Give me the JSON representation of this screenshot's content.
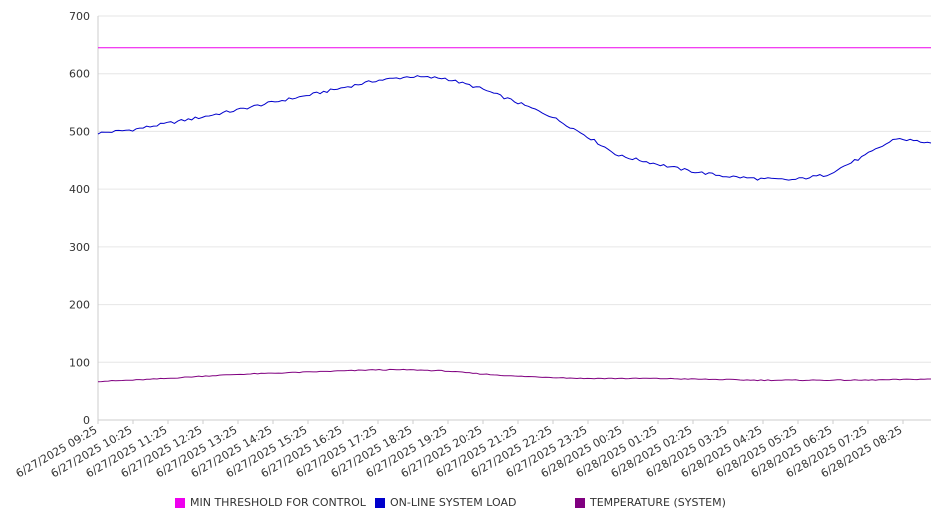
{
  "chart_data": {
    "type": "line",
    "title": "",
    "xlabel": "",
    "ylabel": "",
    "ylim": [
      0,
      700
    ],
    "y_ticks": [
      "0",
      "100",
      "200",
      "300",
      "400",
      "500",
      "600",
      "700"
    ],
    "grid": "horizontal",
    "legend_position": "bottom",
    "x_ticks": [
      "6/27/2025 09:25",
      "6/27/2025 10:25",
      "6/27/2025 11:25",
      "6/27/2025 12:25",
      "6/27/2025 13:25",
      "6/27/2025 14:25",
      "6/27/2025 15:25",
      "6/27/2025 16:25",
      "6/27/2025 17:25",
      "6/27/2025 18:25",
      "6/27/2025 19:25",
      "6/27/2025 20:25",
      "6/27/2025 21:25",
      "6/27/2025 22:25",
      "6/27/2025 23:25",
      "6/28/2025 00:25",
      "6/28/2025 01:25",
      "6/28/2025 02:25",
      "6/28/2025 03:25",
      "6/28/2025 04:25",
      "6/28/2025 05:25",
      "6/28/2025 06:25",
      "6/28/2025 07:25",
      "6/28/2025 08:25"
    ],
    "series": [
      {
        "name": "MIN THRESHOLD FOR CONTROL",
        "color": "#ee00ee",
        "values": [
          645,
          645,
          645,
          645,
          645,
          645,
          645,
          645,
          645,
          645,
          645,
          645,
          645,
          645,
          645,
          645,
          645,
          645,
          645,
          645,
          645,
          645,
          645,
          645,
          645
        ]
      },
      {
        "name": "ON-LINE SYSTEM LOAD",
        "color": "#0000cc",
        "values": [
          497,
          503,
          514,
          525,
          537,
          550,
          562,
          575,
          588,
          595,
          592,
          575,
          552,
          528,
          495,
          458,
          445,
          432,
          423,
          418,
          416,
          425,
          455,
          488,
          480
        ]
      },
      {
        "name": "TEMPERATURE (SYSTEM)",
        "color": "#800080",
        "values": [
          67,
          69,
          72,
          76,
          79,
          81,
          83,
          85,
          87,
          87,
          85,
          80,
          76,
          74,
          72,
          72,
          72,
          71,
          70,
          69,
          69,
          69,
          69,
          70,
          71
        ]
      }
    ]
  }
}
